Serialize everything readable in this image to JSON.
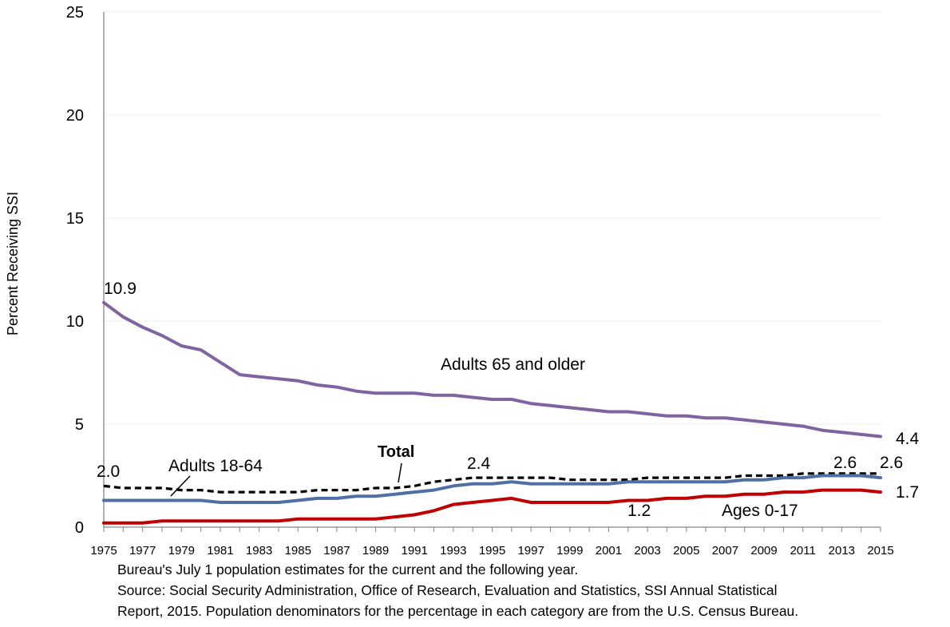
{
  "chart_data": {
    "type": "line",
    "title": "",
    "xlabel": "",
    "ylabel": "Percent Receiving SSI",
    "ylim": [
      0,
      25
    ],
    "yticks": [
      0,
      5,
      10,
      15,
      20,
      25
    ],
    "xlim": [
      1975,
      2015
    ],
    "xticks": [
      1975,
      1977,
      1979,
      1981,
      1983,
      1985,
      1987,
      1989,
      1991,
      1993,
      1995,
      1997,
      1999,
      2001,
      2003,
      2005,
      2007,
      2009,
      2011,
      2013,
      2015
    ],
    "grid": "horizontal",
    "x": [
      1975,
      1976,
      1977,
      1978,
      1979,
      1980,
      1981,
      1982,
      1983,
      1984,
      1985,
      1986,
      1987,
      1988,
      1989,
      1990,
      1991,
      1992,
      1993,
      1994,
      1995,
      1996,
      1997,
      1998,
      1999,
      2000,
      2001,
      2002,
      2003,
      2004,
      2005,
      2006,
      2007,
      2008,
      2009,
      2010,
      2011,
      2012,
      2013,
      2014,
      2015
    ],
    "series": [
      {
        "name": "Adults 65 and older",
        "color": "#8064A2",
        "style": "solid",
        "values": [
          10.9,
          10.2,
          9.7,
          9.3,
          8.8,
          8.6,
          8.0,
          7.4,
          7.3,
          7.2,
          7.1,
          6.9,
          6.8,
          6.6,
          6.5,
          6.5,
          6.5,
          6.4,
          6.4,
          6.3,
          6.2,
          6.2,
          6.0,
          5.9,
          5.8,
          5.7,
          5.6,
          5.6,
          5.5,
          5.4,
          5.4,
          5.3,
          5.3,
          5.2,
          5.1,
          5.0,
          4.9,
          4.7,
          4.6,
          4.5,
          4.4
        ]
      },
      {
        "name": "Total",
        "color": "#000000",
        "style": "dashed",
        "values": [
          2.0,
          1.9,
          1.9,
          1.9,
          1.8,
          1.8,
          1.7,
          1.7,
          1.7,
          1.7,
          1.7,
          1.8,
          1.8,
          1.8,
          1.9,
          1.9,
          2.0,
          2.2,
          2.3,
          2.4,
          2.4,
          2.4,
          2.4,
          2.4,
          2.3,
          2.3,
          2.3,
          2.3,
          2.4,
          2.4,
          2.4,
          2.4,
          2.4,
          2.5,
          2.5,
          2.5,
          2.6,
          2.6,
          2.6,
          2.6,
          2.6
        ]
      },
      {
        "name": "Adults 18-64",
        "color": "#4F6FA5",
        "style": "solid",
        "values": [
          1.3,
          1.3,
          1.3,
          1.3,
          1.3,
          1.3,
          1.2,
          1.2,
          1.2,
          1.2,
          1.3,
          1.4,
          1.4,
          1.5,
          1.5,
          1.6,
          1.7,
          1.8,
          2.0,
          2.1,
          2.1,
          2.2,
          2.1,
          2.1,
          2.1,
          2.1,
          2.1,
          2.2,
          2.2,
          2.2,
          2.2,
          2.2,
          2.2,
          2.3,
          2.3,
          2.4,
          2.4,
          2.5,
          2.5,
          2.5,
          2.4
        ]
      },
      {
        "name": "Ages 0-17",
        "color": "#C00000",
        "style": "solid",
        "values": [
          0.2,
          0.2,
          0.2,
          0.3,
          0.3,
          0.3,
          0.3,
          0.3,
          0.3,
          0.3,
          0.4,
          0.4,
          0.4,
          0.4,
          0.4,
          0.5,
          0.6,
          0.8,
          1.1,
          1.2,
          1.3,
          1.4,
          1.2,
          1.2,
          1.2,
          1.2,
          1.2,
          1.3,
          1.3,
          1.4,
          1.4,
          1.5,
          1.5,
          1.6,
          1.6,
          1.7,
          1.7,
          1.8,
          1.8,
          1.8,
          1.7
        ]
      }
    ],
    "data_labels": [
      "10.9",
      "4.4",
      "2.0",
      "2.4",
      "2.6",
      "2.6",
      "1.7",
      "1.2"
    ],
    "series_labels": {
      "elderly": "Adults 65 and older",
      "adults": "Adults 18-64",
      "total": "Total",
      "children": "Ages 0-17"
    }
  },
  "notes": {
    "line1": "Bureau's July 1 population estimates for the current and the following year.",
    "line2": "Source: Social Security Administration, Office of Research, Evaluation and Statistics, SSI Annual Statistical",
    "line3": "Report, 2015. Population denominators for the percentage in each category are from the U.S. Census Bureau."
  }
}
